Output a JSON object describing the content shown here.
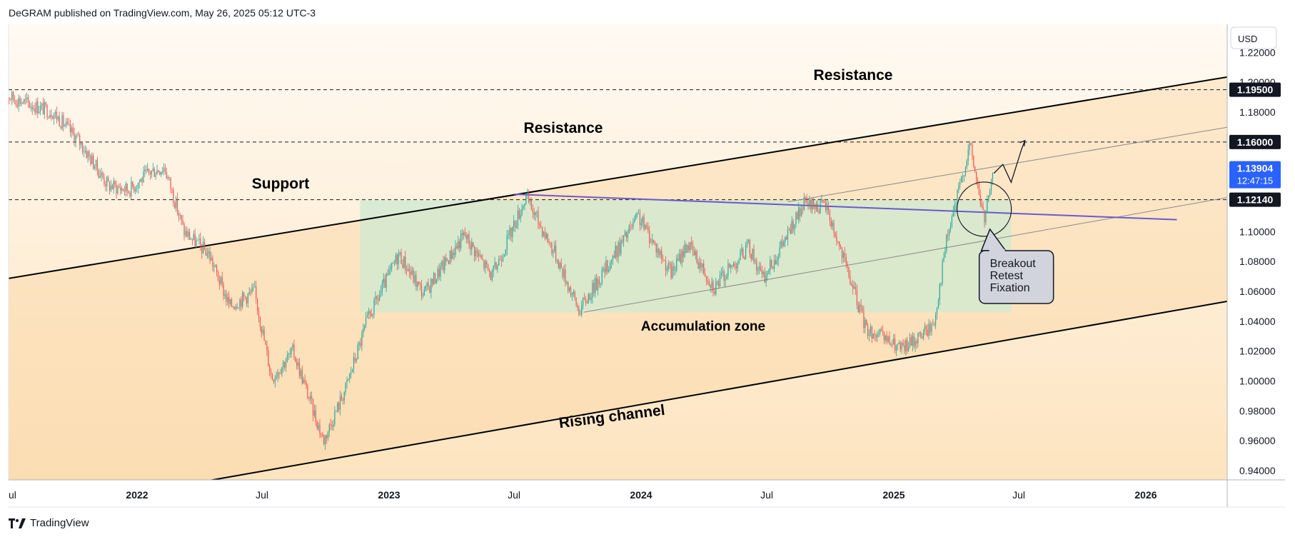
{
  "header": {
    "publisher_line": "DeGRAM published on TradingView.com, May 26, 2025 05:12 UTC-3"
  },
  "footer": {
    "brand": "TradingView"
  },
  "colors": {
    "up_candle": "#26a69a",
    "down_candle": "#ef5350",
    "accumulation_zone": "#cfe9cf",
    "purple_trendline": "#6a5acd",
    "price_tag_current": "#2962ff"
  },
  "chart_data": {
    "type": "candlestick",
    "currency_label": "USD",
    "ylim": [
      0.925,
      1.235
    ],
    "y_ticks": [
      {
        "value": 0.94,
        "label": "0.94000"
      },
      {
        "value": 0.96,
        "label": "0.96000"
      },
      {
        "value": 0.98,
        "label": "0.98000"
      },
      {
        "value": 1.0,
        "label": "1.00000"
      },
      {
        "value": 1.02,
        "label": "1.02000"
      },
      {
        "value": 1.04,
        "label": "1.04000"
      },
      {
        "value": 1.06,
        "label": "1.06000"
      },
      {
        "value": 1.08,
        "label": "1.08000"
      },
      {
        "value": 1.1,
        "label": "1.10000"
      },
      {
        "value": 1.18,
        "label": "1.18000"
      },
      {
        "value": 1.2,
        "label": "1.20000"
      },
      {
        "value": 1.22,
        "label": "1.22000"
      }
    ],
    "x_ticks": [
      {
        "date": "2021-07-01",
        "label": "ul"
      },
      {
        "date": "2022-01-01",
        "label": "2022"
      },
      {
        "date": "2022-07-01",
        "label": "Jul"
      },
      {
        "date": "2023-01-01",
        "label": "2023"
      },
      {
        "date": "2023-07-01",
        "label": "Jul"
      },
      {
        "date": "2024-01-01",
        "label": "2024"
      },
      {
        "date": "2024-07-01",
        "label": "Jul"
      },
      {
        "date": "2025-01-01",
        "label": "2025"
      },
      {
        "date": "2025-07-01",
        "label": "Jul"
      },
      {
        "date": "2026-01-01",
        "label": "2026"
      }
    ],
    "price_path": [
      {
        "date": "2021-06-20",
        "price": 1.192
      },
      {
        "date": "2021-08-01",
        "price": 1.185
      },
      {
        "date": "2021-09-01",
        "price": 1.18
      },
      {
        "date": "2021-10-10",
        "price": 1.16
      },
      {
        "date": "2021-11-20",
        "price": 1.131
      },
      {
        "date": "2021-12-20",
        "price": 1.128
      },
      {
        "date": "2022-01-20",
        "price": 1.14
      },
      {
        "date": "2022-02-10",
        "price": 1.143
      },
      {
        "date": "2022-03-10",
        "price": 1.1
      },
      {
        "date": "2022-04-15",
        "price": 1.085
      },
      {
        "date": "2022-05-15",
        "price": 1.05
      },
      {
        "date": "2022-06-20",
        "price": 1.06
      },
      {
        "date": "2022-07-15",
        "price": 1.002
      },
      {
        "date": "2022-08-15",
        "price": 1.02
      },
      {
        "date": "2022-09-28",
        "price": 0.96
      },
      {
        "date": "2022-10-30",
        "price": 0.995
      },
      {
        "date": "2022-11-30",
        "price": 1.04
      },
      {
        "date": "2023-01-15",
        "price": 1.085
      },
      {
        "date": "2023-02-20",
        "price": 1.058
      },
      {
        "date": "2023-04-20",
        "price": 1.098
      },
      {
        "date": "2023-05-30",
        "price": 1.07
      },
      {
        "date": "2023-07-18",
        "price": 1.123
      },
      {
        "date": "2023-08-30",
        "price": 1.085
      },
      {
        "date": "2023-10-03",
        "price": 1.047
      },
      {
        "date": "2023-12-28",
        "price": 1.11
      },
      {
        "date": "2024-02-14",
        "price": 1.072
      },
      {
        "date": "2024-03-08",
        "price": 1.092
      },
      {
        "date": "2024-04-16",
        "price": 1.063
      },
      {
        "date": "2024-06-05",
        "price": 1.09
      },
      {
        "date": "2024-06-26",
        "price": 1.068
      },
      {
        "date": "2024-08-24",
        "price": 1.118
      },
      {
        "date": "2024-09-25",
        "price": 1.117
      },
      {
        "date": "2024-11-22",
        "price": 1.035
      },
      {
        "date": "2025-01-13",
        "price": 1.021
      },
      {
        "date": "2025-02-28",
        "price": 1.038
      },
      {
        "date": "2025-03-18",
        "price": 1.093
      },
      {
        "date": "2025-04-21",
        "price": 1.158
      },
      {
        "date": "2025-05-12",
        "price": 1.108
      },
      {
        "date": "2025-05-26",
        "price": 1.139
      }
    ],
    "channel_lines": [
      {
        "name": "rising-channel-upper",
        "from": {
          "date": "2021-06-20",
          "price": 1.068
        },
        "to": {
          "date": "2026-06-01",
          "price": 1.206
        }
      },
      {
        "name": "rising-channel-lower",
        "from": {
          "date": "2022-01-15",
          "price": 0.926
        },
        "to": {
          "date": "2026-06-01",
          "price": 1.056
        }
      },
      {
        "name": "inner-channel-upper",
        "from": {
          "date": "2024-08-01",
          "price": 1.12
        },
        "to": {
          "date": "2026-05-01",
          "price": 1.17
        }
      },
      {
        "name": "inner-channel-lower",
        "from": {
          "date": "2023-10-10",
          "price": 1.046
        },
        "to": {
          "date": "2026-05-01",
          "price": 1.123
        }
      },
      {
        "name": "purple-trendline",
        "from": {
          "date": "2023-07-01",
          "price": 1.125
        },
        "to": {
          "date": "2026-02-15",
          "price": 1.108
        }
      }
    ],
    "horizontal_levels": [
      {
        "value": 1.195,
        "label": "1.19500"
      },
      {
        "value": 1.16,
        "label": "1.16000"
      },
      {
        "value": 1.1214,
        "label": "1.12140"
      }
    ],
    "current_price": {
      "value": 1.13904,
      "label": "1.13904",
      "countdown": "12:47:15"
    },
    "accumulation_zone": {
      "from": "2022-11-20",
      "to": "2025-06-20",
      "low": 1.046,
      "high": 1.121
    },
    "projection_path": [
      {
        "date": "2025-05-26",
        "price": 1.139
      },
      {
        "date": "2025-06-08",
        "price": 1.145
      },
      {
        "date": "2025-06-20",
        "price": 1.133
      },
      {
        "date": "2025-07-05",
        "price": 1.155
      },
      {
        "date": "2025-07-10",
        "price": 1.161
      }
    ],
    "circle_marker": {
      "date": "2025-05-12",
      "price": 1.115
    },
    "annotations": {
      "resistance_top": "Resistance",
      "resistance_mid": "Resistance",
      "support": "Support",
      "accumulation_zone": "Accumulation zone",
      "rising_channel": "Rising channel",
      "callout": [
        "Breakout",
        "Retest",
        "Fixation"
      ]
    }
  }
}
